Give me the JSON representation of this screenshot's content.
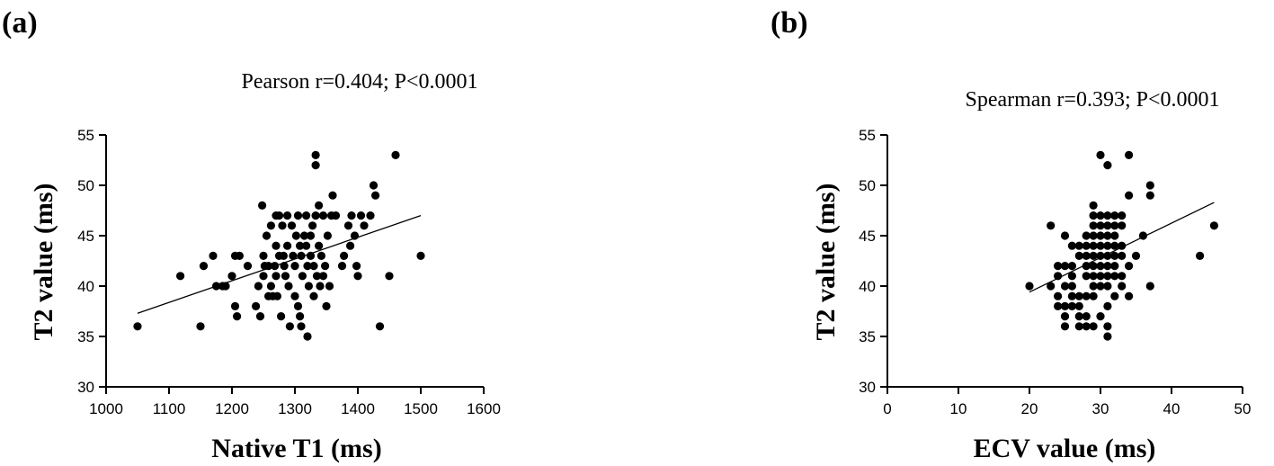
{
  "chart_data": [
    {
      "type": "scatter",
      "panel_label": "(a)",
      "title": "Pearson r=0.404; P<0.0001",
      "xlabel": "Native T1 (ms)",
      "ylabel": "T2 value (ms)",
      "xlim": [
        1000,
        1600
      ],
      "ylim": [
        30,
        55
      ],
      "xticks": [
        1000,
        1100,
        1200,
        1300,
        1400,
        1500,
        1600
      ],
      "yticks": [
        30,
        35,
        40,
        45,
        50,
        55
      ],
      "grid": false,
      "fit_line": [
        [
          1050,
          37.3
        ],
        [
          1500,
          47.0
        ]
      ],
      "points": [
        [
          1050,
          36
        ],
        [
          1118,
          41
        ],
        [
          1150,
          36
        ],
        [
          1155,
          42
        ],
        [
          1170,
          43
        ],
        [
          1175,
          40
        ],
        [
          1185,
          40
        ],
        [
          1190,
          40
        ],
        [
          1200,
          41
        ],
        [
          1205,
          43
        ],
        [
          1205,
          38
        ],
        [
          1208,
          37
        ],
        [
          1212,
          43
        ],
        [
          1225,
          42
        ],
        [
          1238,
          38
        ],
        [
          1242,
          40
        ],
        [
          1245,
          37
        ],
        [
          1248,
          48
        ],
        [
          1250,
          43
        ],
        [
          1250,
          41
        ],
        [
          1252,
          42
        ],
        [
          1255,
          45
        ],
        [
          1258,
          42
        ],
        [
          1258,
          39
        ],
        [
          1262,
          46
        ],
        [
          1262,
          40
        ],
        [
          1265,
          39
        ],
        [
          1268,
          42
        ],
        [
          1270,
          47
        ],
        [
          1270,
          44
        ],
        [
          1270,
          41
        ],
        [
          1272,
          39
        ],
        [
          1275,
          47
        ],
        [
          1275,
          43
        ],
        [
          1278,
          37
        ],
        [
          1280,
          46
        ],
        [
          1282,
          43
        ],
        [
          1283,
          42
        ],
        [
          1285,
          41
        ],
        [
          1288,
          47
        ],
        [
          1288,
          44
        ],
        [
          1290,
          40
        ],
        [
          1292,
          36
        ],
        [
          1295,
          46
        ],
        [
          1297,
          43
        ],
        [
          1300,
          42
        ],
        [
          1300,
          39
        ],
        [
          1302,
          45
        ],
        [
          1305,
          47
        ],
        [
          1305,
          38
        ],
        [
          1308,
          44
        ],
        [
          1308,
          37
        ],
        [
          1310,
          43
        ],
        [
          1310,
          36
        ],
        [
          1312,
          41
        ],
        [
          1315,
          45
        ],
        [
          1318,
          47
        ],
        [
          1318,
          44
        ],
        [
          1320,
          35
        ],
        [
          1320,
          42
        ],
        [
          1322,
          40
        ],
        [
          1325,
          45
        ],
        [
          1325,
          43
        ],
        [
          1328,
          46
        ],
        [
          1330,
          42
        ],
        [
          1330,
          39
        ],
        [
          1333,
          47
        ],
        [
          1333,
          53
        ],
        [
          1333,
          52
        ],
        [
          1335,
          41
        ],
        [
          1338,
          48
        ],
        [
          1338,
          44
        ],
        [
          1340,
          40
        ],
        [
          1342,
          43
        ],
        [
          1345,
          47
        ],
        [
          1345,
          41
        ],
        [
          1348,
          42
        ],
        [
          1350,
          38
        ],
        [
          1352,
          45
        ],
        [
          1355,
          40
        ],
        [
          1358,
          47
        ],
        [
          1360,
          49
        ],
        [
          1365,
          47
        ],
        [
          1375,
          42
        ],
        [
          1378,
          43
        ],
        [
          1385,
          46
        ],
        [
          1388,
          44
        ],
        [
          1390,
          47
        ],
        [
          1395,
          45
        ],
        [
          1398,
          42
        ],
        [
          1400,
          41
        ],
        [
          1405,
          47
        ],
        [
          1410,
          46
        ],
        [
          1420,
          47
        ],
        [
          1425,
          50
        ],
        [
          1428,
          49
        ],
        [
          1435,
          36
        ],
        [
          1450,
          41
        ],
        [
          1460,
          53
        ],
        [
          1500,
          43
        ]
      ]
    },
    {
      "type": "scatter",
      "panel_label": "(b)",
      "title": "Spearman r=0.393; P<0.0001",
      "xlabel": "ECV value (ms)",
      "ylabel": "T2 value (ms)",
      "xlim": [
        0,
        50
      ],
      "ylim": [
        30,
        55
      ],
      "xticks": [
        0,
        10,
        20,
        30,
        40,
        50
      ],
      "yticks": [
        30,
        35,
        40,
        45,
        50,
        55
      ],
      "grid": false,
      "fit_line": [
        [
          20,
          39.4
        ],
        [
          46,
          48.3
        ]
      ],
      "points": [
        [
          20,
          40
        ],
        [
          23,
          46
        ],
        [
          23,
          40
        ],
        [
          24,
          42
        ],
        [
          24,
          41
        ],
        [
          24,
          39
        ],
        [
          24,
          38
        ],
        [
          25,
          45
        ],
        [
          25,
          42
        ],
        [
          25,
          40
        ],
        [
          25,
          38
        ],
        [
          25,
          37
        ],
        [
          25,
          36
        ],
        [
          26,
          44
        ],
        [
          26,
          42
        ],
        [
          26,
          41
        ],
        [
          26,
          40
        ],
        [
          26,
          39
        ],
        [
          26,
          38
        ],
        [
          27,
          44
        ],
        [
          27,
          43
        ],
        [
          27,
          39
        ],
        [
          27,
          38
        ],
        [
          27,
          37
        ],
        [
          27,
          36
        ],
        [
          28,
          45
        ],
        [
          28,
          44
        ],
        [
          28,
          43
        ],
        [
          28,
          42
        ],
        [
          28,
          41
        ],
        [
          28,
          39
        ],
        [
          28,
          37
        ],
        [
          28,
          36
        ],
        [
          29,
          48
        ],
        [
          29,
          47
        ],
        [
          29,
          46
        ],
        [
          29,
          45
        ],
        [
          29,
          44
        ],
        [
          29,
          43
        ],
        [
          29,
          42
        ],
        [
          29,
          41
        ],
        [
          29,
          40
        ],
        [
          29,
          39
        ],
        [
          29,
          36
        ],
        [
          30,
          53
        ],
        [
          30,
          47
        ],
        [
          30,
          46
        ],
        [
          30,
          45
        ],
        [
          30,
          44
        ],
        [
          30,
          43
        ],
        [
          30,
          42
        ],
        [
          30,
          41
        ],
        [
          30,
          40
        ],
        [
          30,
          37
        ],
        [
          31,
          52
        ],
        [
          31,
          47
        ],
        [
          31,
          46
        ],
        [
          31,
          45
        ],
        [
          31,
          44
        ],
        [
          31,
          43
        ],
        [
          31,
          42
        ],
        [
          31,
          41
        ],
        [
          31,
          40
        ],
        [
          31,
          38
        ],
        [
          31,
          36
        ],
        [
          31,
          35
        ],
        [
          32,
          47
        ],
        [
          32,
          46
        ],
        [
          32,
          45
        ],
        [
          32,
          44
        ],
        [
          32,
          43
        ],
        [
          32,
          42
        ],
        [
          32,
          41
        ],
        [
          32,
          39
        ],
        [
          33,
          47
        ],
        [
          33,
          46
        ],
        [
          33,
          44
        ],
        [
          33,
          43
        ],
        [
          33,
          41
        ],
        [
          33,
          40
        ],
        [
          34,
          53
        ],
        [
          34,
          49
        ],
        [
          34,
          42
        ],
        [
          34,
          39
        ],
        [
          35,
          43
        ],
        [
          36,
          45
        ],
        [
          37,
          50
        ],
        [
          37,
          49
        ],
        [
          37,
          40
        ],
        [
          44,
          43
        ],
        [
          46,
          46
        ]
      ]
    }
  ]
}
